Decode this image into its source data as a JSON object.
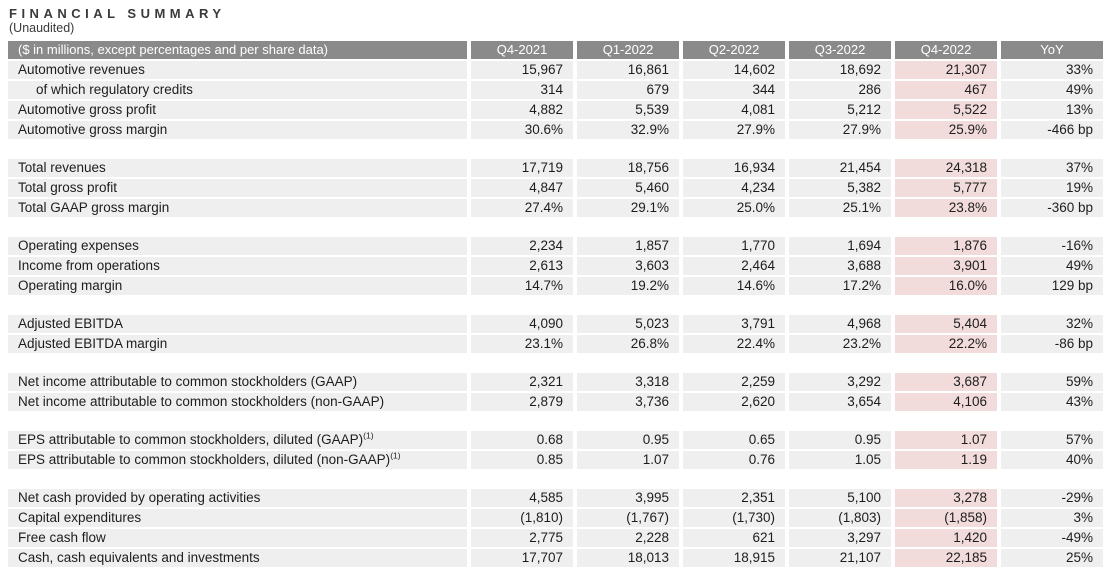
{
  "page": {
    "title": "FINANCIAL SUMMARY",
    "subtitle": "(Unaudited)"
  },
  "colors": {
    "header_bg": "#8a8a8a",
    "header_text": "#ffffff",
    "row_bg": "#f0efef",
    "highlight_bg": "#f2dcdb",
    "body_text": "#1d1d1d"
  },
  "table": {
    "label_header": "($ in millions, except percentages and per share data)",
    "columns": [
      "Q4-2021",
      "Q1-2022",
      "Q2-2022",
      "Q3-2022",
      "Q4-2022",
      "YoY"
    ],
    "highlight_column": "Q4-2022",
    "rows": [
      {
        "label": "Automotive revenues",
        "values": [
          "15,967",
          "16,861",
          "14,602",
          "18,692",
          "21,307"
        ],
        "yoy": "33%"
      },
      {
        "label": "of which regulatory credits",
        "indent": true,
        "values": [
          "314",
          "679",
          "344",
          "286",
          "467"
        ],
        "yoy": "49%"
      },
      {
        "label": "Automotive gross profit",
        "values": [
          "4,882",
          "5,539",
          "4,081",
          "5,212",
          "5,522"
        ],
        "yoy": "13%"
      },
      {
        "label": "Automotive gross margin",
        "values": [
          "30.6%",
          "32.9%",
          "27.9%",
          "27.9%",
          "25.9%"
        ],
        "yoy": "-466 bp"
      },
      {
        "gap": true
      },
      {
        "label": "Total revenues",
        "values": [
          "17,719",
          "18,756",
          "16,934",
          "21,454",
          "24,318"
        ],
        "yoy": "37%"
      },
      {
        "label": "Total gross profit",
        "values": [
          "4,847",
          "5,460",
          "4,234",
          "5,382",
          "5,777"
        ],
        "yoy": "19%"
      },
      {
        "label": "Total GAAP gross margin",
        "values": [
          "27.4%",
          "29.1%",
          "25.0%",
          "25.1%",
          "23.8%"
        ],
        "yoy": "-360 bp"
      },
      {
        "gap": true
      },
      {
        "label": "Operating expenses",
        "values": [
          "2,234",
          "1,857",
          "1,770",
          "1,694",
          "1,876"
        ],
        "yoy": "-16%"
      },
      {
        "label": "Income from operations",
        "values": [
          "2,613",
          "3,603",
          "2,464",
          "3,688",
          "3,901"
        ],
        "yoy": "49%"
      },
      {
        "label": "Operating margin",
        "values": [
          "14.7%",
          "19.2%",
          "14.6%",
          "17.2%",
          "16.0%"
        ],
        "yoy": "129 bp"
      },
      {
        "gap": true
      },
      {
        "label": "Adjusted EBITDA",
        "values": [
          "4,090",
          "5,023",
          "3,791",
          "4,968",
          "5,404"
        ],
        "yoy": "32%"
      },
      {
        "label": "Adjusted EBITDA margin",
        "values": [
          "23.1%",
          "26.8%",
          "22.4%",
          "23.2%",
          "22.2%"
        ],
        "yoy": "-86 bp"
      },
      {
        "gap": true
      },
      {
        "label": "Net income attributable to common stockholders (GAAP)",
        "values": [
          "2,321",
          "3,318",
          "2,259",
          "3,292",
          "3,687"
        ],
        "yoy": "59%"
      },
      {
        "label": "Net income attributable to common stockholders (non-GAAP)",
        "values": [
          "2,879",
          "3,736",
          "2,620",
          "3,654",
          "4,106"
        ],
        "yoy": "43%"
      },
      {
        "gap": true
      },
      {
        "label": "EPS attributable to common stockholders, diluted (GAAP)",
        "sup": "(1)",
        "values": [
          "0.68",
          "0.95",
          "0.65",
          "0.95",
          "1.07"
        ],
        "yoy": "57%"
      },
      {
        "label": "EPS attributable to common stockholders, diluted (non-GAAP)",
        "sup": "(1)",
        "values": [
          "0.85",
          "1.07",
          "0.76",
          "1.05",
          "1.19"
        ],
        "yoy": "40%"
      },
      {
        "gap": true
      },
      {
        "label": "Net cash provided by operating activities",
        "values": [
          "4,585",
          "3,995",
          "2,351",
          "5,100",
          "3,278"
        ],
        "yoy": "-29%"
      },
      {
        "label": "Capital expenditures",
        "values": [
          "(1,810)",
          "(1,767)",
          "(1,730)",
          "(1,803)",
          "(1,858)"
        ],
        "yoy": "3%"
      },
      {
        "label": "Free cash flow",
        "values": [
          "2,775",
          "2,228",
          "621",
          "3,297",
          "1,420"
        ],
        "yoy": "-49%"
      },
      {
        "label": "Cash, cash equivalents and investments",
        "values": [
          "17,707",
          "18,013",
          "18,915",
          "21,107",
          "22,185"
        ],
        "yoy": "25%"
      }
    ]
  }
}
